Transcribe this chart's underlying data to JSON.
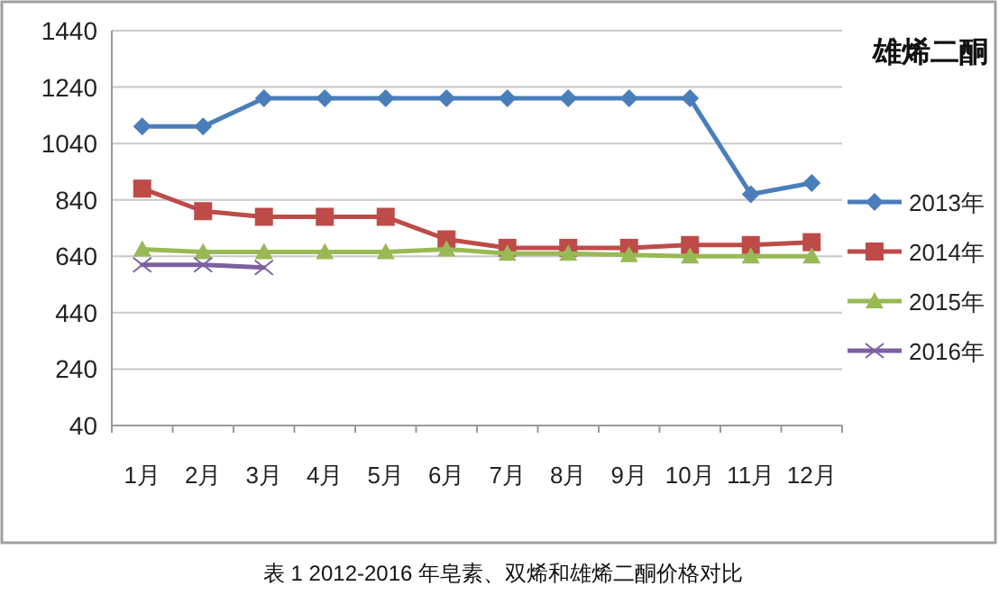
{
  "chart_data": {
    "type": "line",
    "title": "雄烯二酮",
    "categories": [
      "1月",
      "2月",
      "3月",
      "4月",
      "5月",
      "6月",
      "7月",
      "8月",
      "9月",
      "10月",
      "11月",
      "12月"
    ],
    "series": [
      {
        "name": "2013年",
        "color": "#4a7ebb",
        "marker": "diamond",
        "values": [
          1100,
          1100,
          1200,
          1200,
          1200,
          1200,
          1200,
          1200,
          1200,
          1200,
          860,
          900
        ]
      },
      {
        "name": "2014年",
        "color": "#be4b48",
        "marker": "square",
        "values": [
          880,
          800,
          780,
          780,
          780,
          700,
          670,
          670,
          670,
          680,
          680,
          690
        ]
      },
      {
        "name": "2015年",
        "color": "#98b954",
        "marker": "triangle",
        "values": [
          665,
          655,
          655,
          655,
          655,
          665,
          650,
          650,
          645,
          640,
          640,
          640
        ]
      },
      {
        "name": "2016年",
        "color": "#7d60a0",
        "marker": "cross",
        "values": [
          610,
          610,
          600,
          null,
          null,
          null,
          null,
          null,
          null,
          null,
          null,
          null
        ]
      }
    ],
    "ylim": [
      40,
      1440
    ],
    "yticks": [
      40,
      240,
      440,
      640,
      840,
      1040,
      1240,
      1440
    ],
    "grid": "y",
    "legend": "right",
    "annotations": [
      "表 1 2012-2016 年皂素、双烯和雄烯二酮价格对比"
    ]
  }
}
